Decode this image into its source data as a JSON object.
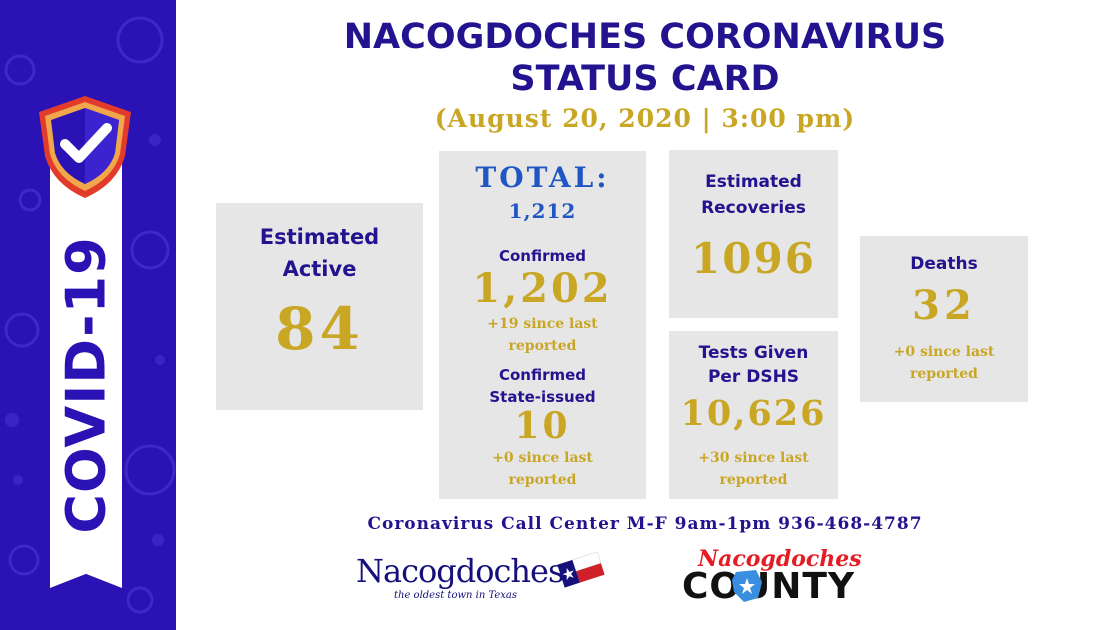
{
  "banner": {
    "label": "COVID-19",
    "colors": {
      "background": "#2a12b4",
      "ribbon": "#ffffff"
    },
    "icon": "shield-check-icon"
  },
  "header": {
    "title_line1": "NACOGDOCHES CORONAVIRUS",
    "title_line2": "STATUS CARD",
    "date": "(August 20, 2020 | 3:00 pm)"
  },
  "cards": {
    "active": {
      "label_line1": "Estimated",
      "label_line2": "Active",
      "value": "84"
    },
    "total": {
      "label": "TOTAL:",
      "value": "1,212",
      "confirmed_label": "Confirmed",
      "confirmed_value": "1,202",
      "confirmed_note_line1": "+19 since last",
      "confirmed_note_line2": "reported",
      "state_label_line1": "Confirmed",
      "state_label_line2": "State-issued",
      "state_value": "10",
      "state_note_line1": "+0 since last",
      "state_note_line2": "reported"
    },
    "recoveries": {
      "label_line1": "Estimated",
      "label_line2": "Recoveries",
      "value": "1096"
    },
    "tests": {
      "label_line1": "Tests Given",
      "label_line2": "Per DSHS",
      "value": "10,626",
      "note_line1": "+30 since last",
      "note_line2": "reported"
    },
    "deaths": {
      "label": "Deaths",
      "value": "32",
      "note_line1": "+0 since last",
      "note_line2": "reported"
    }
  },
  "footer": {
    "call_center": "Coronavirus Call Center M-F 9am-1pm 936-468-4787",
    "city_logo_name": "Nacogdoches",
    "city_logo_tagline": "the oldest town in Texas",
    "county_logo_script": "Nacogdoches",
    "county_logo_word": "COUNTY"
  },
  "colors": {
    "title": "#24138f",
    "accent_gold": "#c9a624",
    "card_bg": "#e6e6e6",
    "total_blue": "#1f56c4"
  }
}
